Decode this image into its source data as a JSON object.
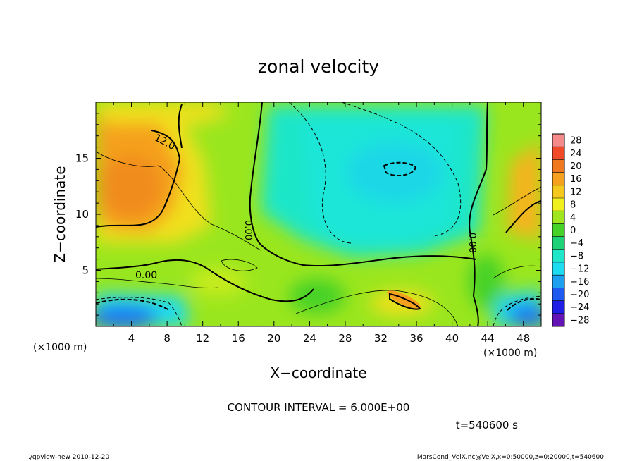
{
  "chart_data": {
    "type": "heatmap",
    "title": "zonal velocity",
    "xlabel": "X−coordinate",
    "ylabel": "Z−coordinate",
    "x_unit_left": "(×1000 m)",
    "x_unit_right": "(×1000 m)",
    "xlim": [
      0,
      50
    ],
    "ylim": [
      0,
      20
    ],
    "x_ticks": [
      4,
      8,
      12,
      16,
      20,
      24,
      28,
      32,
      36,
      40,
      44,
      48
    ],
    "x_tick_labels": [
      "4",
      "8",
      "12",
      "16",
      "20",
      "24",
      "28",
      "32",
      "36",
      "40",
      "44",
      "48"
    ],
    "y_ticks": [
      5,
      10,
      15
    ],
    "y_tick_labels": [
      "5",
      "10",
      "15"
    ],
    "colorbar": {
      "levels": [
        28,
        24,
        20,
        16,
        12,
        8,
        4,
        0,
        -4,
        -8,
        -12,
        -16,
        -20,
        -24,
        -28
      ],
      "labels": [
        "28",
        "24",
        "20",
        "16",
        "12",
        "8",
        "4",
        "0",
        "−4",
        "−8",
        "−12",
        "−16",
        "−20",
        "−24",
        "−28"
      ],
      "colors": [
        "#f58a8a",
        "#f04a28",
        "#f0781e",
        "#f5a01e",
        "#f5c81e",
        "#f0f01e",
        "#a0e61e",
        "#46d228",
        "#1ed278",
        "#1ee6c8",
        "#1edcf0",
        "#1ea0f0",
        "#1e5af0",
        "#1e1ee6",
        "#6414b4"
      ]
    },
    "contour_labels": [
      "12.0",
      "0.00",
      "0.00",
      "0.00"
    ],
    "annotations": {
      "contour_interval": "CONTOUR INTERVAL = 6.000E+00",
      "time": "t=540600 s",
      "footer_left": "./gpview-new  2010-12-20",
      "footer_right": "MarsCond_VelX.nc@VelX,x=0:50000,z=0:20000,t=540600"
    }
  }
}
